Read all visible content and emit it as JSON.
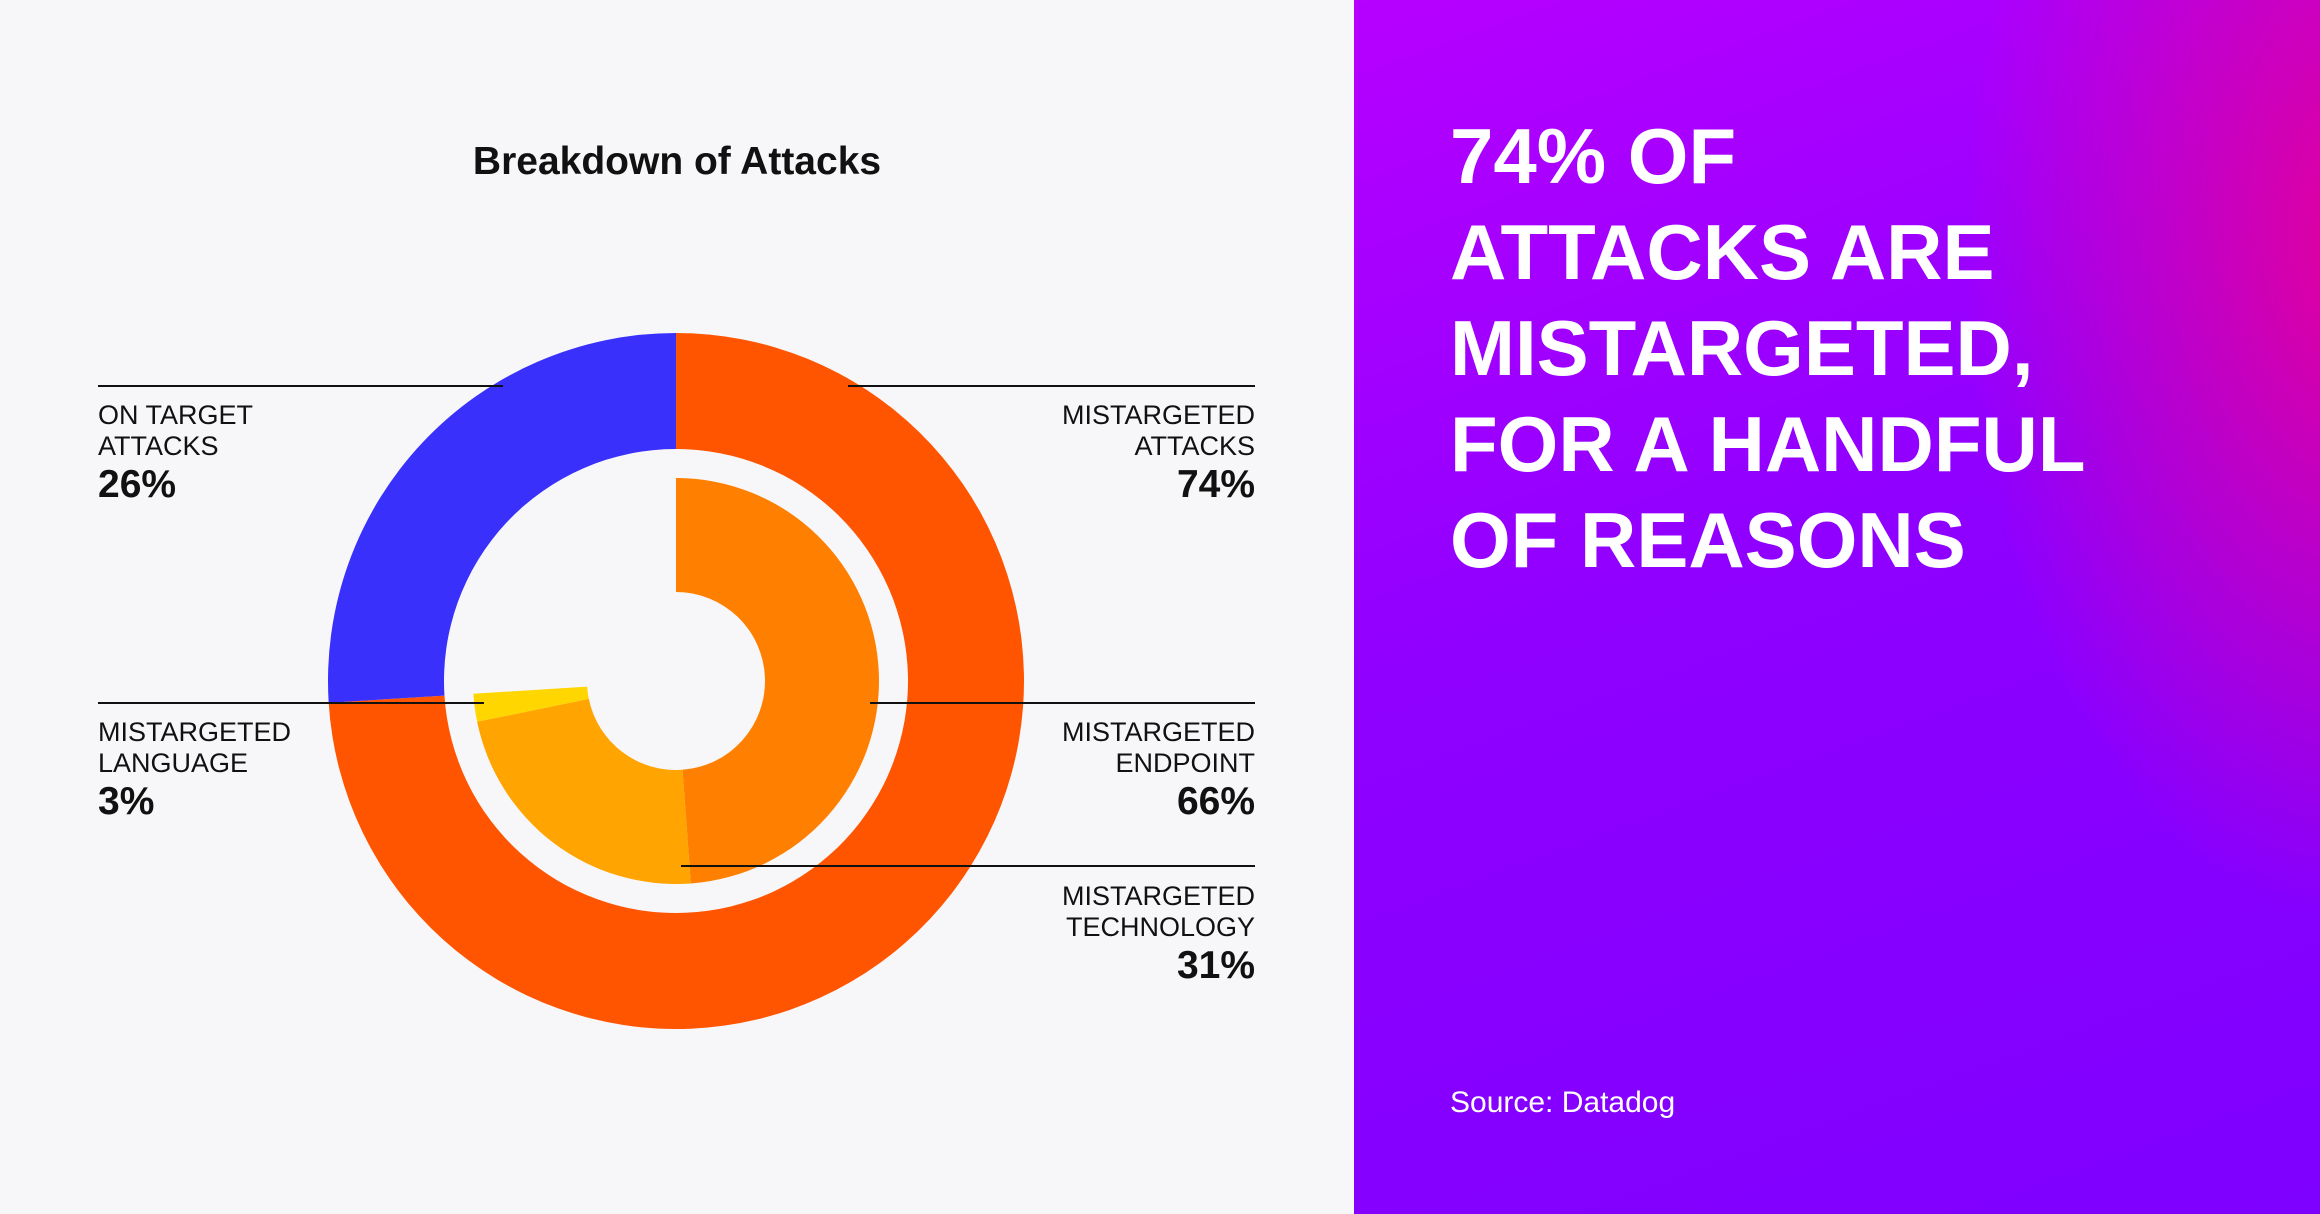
{
  "chart_data": {
    "type": "nested-donut",
    "title": "Breakdown of Attacks",
    "rings": [
      {
        "categories": [
          "ON TARGET\nATTACKS",
          "MISTARGETED\nATTACKS"
        ],
        "values": [
          26,
          74
        ],
        "value_labels": [
          "26%",
          "74%"
        ],
        "colors": [
          "#3a30fb",
          "#ff5500"
        ]
      },
      {
        "categories": [
          "MISTARGETED\nENDPOINT",
          "MISTARGETED\nTECHNOLOGY",
          "MISTARGETED\nLANGUAGE"
        ],
        "values": [
          66,
          31,
          3
        ],
        "value_labels": [
          "66%",
          "31%",
          "3%"
        ],
        "colors": [
          "#ff8000",
          "#ffa400",
          "#ffd600"
        ]
      }
    ]
  },
  "headline": "74% OF\nATTACKS ARE\nMISTARGETED,\nFOR A HANDFUL\nOF REASONS",
  "source": "Source: Datadog"
}
